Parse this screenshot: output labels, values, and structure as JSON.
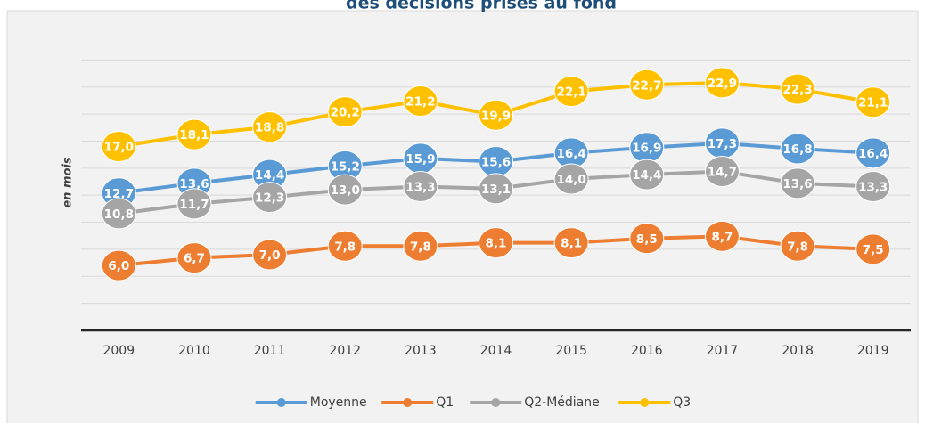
{
  "chart_data": {
    "type": "line",
    "title": "des décisions prises au fond",
    "ylabel": "en mois",
    "categories": [
      "2009",
      "2010",
      "2011",
      "2012",
      "2013",
      "2014",
      "2015",
      "2016",
      "2017",
      "2018",
      "2019"
    ],
    "ylim": [
      0,
      27.5
    ],
    "yticks": [
      0,
      2.5,
      5,
      7.5,
      10,
      12.5,
      15,
      17.5,
      20,
      22.5,
      25
    ],
    "grid": true,
    "legend": "bottom",
    "series": [
      {
        "name": "Moyenne",
        "color": "#5b9bd5",
        "values": [
          12.7,
          13.6,
          14.4,
          15.2,
          15.9,
          15.6,
          16.4,
          16.9,
          17.3,
          16.8,
          16.4
        ],
        "value_labels": [
          "12,7",
          "13,6",
          "14,4",
          "15,2",
          "15,9",
          "15,6",
          "16,4",
          "16,9",
          "17,3",
          "16,8",
          "16,4"
        ]
      },
      {
        "name": "Q1",
        "color": "#ed7d31",
        "values": [
          6.0,
          6.7,
          7.0,
          7.8,
          7.8,
          8.1,
          8.1,
          8.5,
          8.7,
          7.8,
          7.5
        ],
        "value_labels": [
          "6,0",
          "6,7",
          "7,0",
          "7,8",
          "7,8",
          "8,1",
          "8,1",
          "8,5",
          "8,7",
          "7,8",
          "7,5"
        ]
      },
      {
        "name": "Q2-Médiane",
        "color": "#a5a5a5",
        "values": [
          10.8,
          11.7,
          12.3,
          13.0,
          13.3,
          13.1,
          14.0,
          14.4,
          14.7,
          13.6,
          13.3
        ],
        "value_labels": [
          "10,8",
          "11,7",
          "12,3",
          "13,0",
          "13,3",
          "13,1",
          "14,0",
          "14,4",
          "14,7",
          "13,6",
          "13,3"
        ]
      },
      {
        "name": "Q3",
        "color": "#ffc000",
        "values": [
          17.0,
          18.1,
          18.8,
          20.2,
          21.2,
          19.9,
          22.1,
          22.7,
          22.9,
          22.3,
          21.1
        ],
        "value_labels": [
          "17,0",
          "18,1",
          "18,8",
          "20,2",
          "21,2",
          "19,9",
          "22,1",
          "22,7",
          "22,9",
          "22,3",
          "21,1"
        ]
      }
    ]
  }
}
